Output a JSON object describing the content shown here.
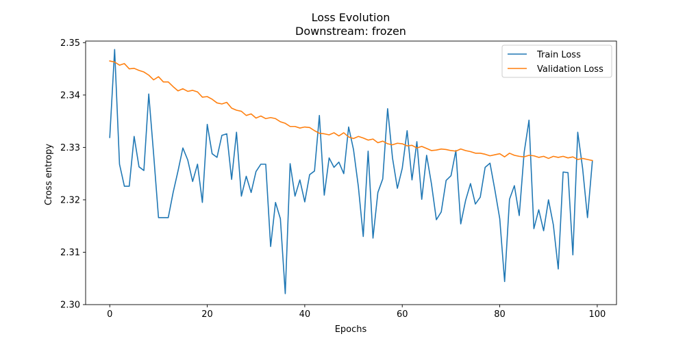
{
  "chart_data": {
    "type": "line",
    "title": "Loss Evolution",
    "subtitle": "Downstream: frozen",
    "xlabel": "Epochs",
    "ylabel": "Cross entropy",
    "xlim": [
      -4.95,
      103.95
    ],
    "ylim": [
      2.3,
      2.3503
    ],
    "xticks": [
      0,
      20,
      40,
      60,
      80,
      100
    ],
    "xtick_labels": [
      "0",
      "20",
      "40",
      "60",
      "80",
      "100"
    ],
    "yticks": [
      2.3,
      2.31,
      2.32,
      2.33,
      2.34,
      2.35
    ],
    "ytick_labels": [
      "2.30",
      "2.31",
      "2.32",
      "2.33",
      "2.34",
      "2.35"
    ],
    "grid": false,
    "legend_position": "top-right",
    "x": [
      0,
      1,
      2,
      3,
      4,
      5,
      6,
      7,
      8,
      9,
      10,
      11,
      12,
      13,
      14,
      15,
      16,
      17,
      18,
      19,
      20,
      21,
      22,
      23,
      24,
      25,
      26,
      27,
      28,
      29,
      30,
      31,
      32,
      33,
      34,
      35,
      36,
      37,
      38,
      39,
      40,
      41,
      42,
      43,
      44,
      45,
      46,
      47,
      48,
      49,
      50,
      51,
      52,
      53,
      54,
      55,
      56,
      57,
      58,
      59,
      60,
      61,
      62,
      63,
      64,
      65,
      66,
      67,
      68,
      69,
      70,
      71,
      72,
      73,
      74,
      75,
      76,
      77,
      78,
      79,
      80,
      81,
      82,
      83,
      84,
      85,
      86,
      87,
      88,
      89,
      90,
      91,
      92,
      93,
      94,
      95,
      96,
      97,
      98,
      99
    ],
    "series": [
      {
        "name": "Train Loss",
        "color": "#1f77b4",
        "values": [
          2.3319,
          2.3487,
          2.3268,
          2.3226,
          2.3226,
          2.3321,
          2.3263,
          2.3256,
          2.3402,
          2.3287,
          2.3166,
          2.3166,
          2.3166,
          2.3214,
          2.3255,
          2.3299,
          2.3276,
          2.3235,
          2.3268,
          2.3195,
          2.3344,
          2.3288,
          2.3281,
          2.3323,
          2.3326,
          2.3239,
          2.3329,
          2.3207,
          2.3245,
          2.3214,
          2.3254,
          2.3268,
          2.3268,
          2.3111,
          2.3195,
          2.3164,
          2.3021,
          2.3269,
          2.3207,
          2.3238,
          2.3196,
          2.3248,
          2.3255,
          2.3361,
          2.3209,
          2.328,
          2.3262,
          2.3272,
          2.325,
          2.3339,
          2.3296,
          2.3225,
          2.313,
          2.3293,
          2.3127,
          2.3214,
          2.324,
          2.3374,
          2.328,
          2.3222,
          2.326,
          2.3332,
          2.3238,
          2.3311,
          2.3201,
          2.3285,
          2.323,
          2.3162,
          2.3177,
          2.3237,
          2.3246,
          2.3294,
          2.3154,
          2.3199,
          2.3231,
          2.3192,
          2.3205,
          2.3262,
          2.327,
          2.3219,
          2.3164,
          2.3044,
          2.3201,
          2.3227,
          2.317,
          2.329,
          2.3352,
          2.3145,
          2.3181,
          2.3141,
          2.32,
          2.3152,
          2.3068,
          2.3253,
          2.3252,
          2.3095,
          2.3329,
          2.326,
          2.3166,
          2.3274
        ]
      },
      {
        "name": "Validation Loss",
        "color": "#ff7f0e",
        "values": [
          2.3465,
          2.3463,
          2.3457,
          2.346,
          2.345,
          2.3451,
          2.3447,
          2.3444,
          2.3438,
          2.3429,
          2.3435,
          2.3425,
          2.3425,
          2.3416,
          2.3408,
          2.3412,
          2.3407,
          2.3409,
          2.3406,
          2.3396,
          2.3397,
          2.3392,
          2.3385,
          2.3383,
          2.3386,
          2.3375,
          2.3371,
          2.3369,
          2.3361,
          2.3364,
          2.3356,
          2.336,
          2.3355,
          2.3357,
          2.3355,
          2.3349,
          2.3346,
          2.334,
          2.334,
          2.3337,
          2.3339,
          2.3338,
          2.3332,
          2.3327,
          2.3326,
          2.3324,
          2.3328,
          2.3322,
          2.3328,
          2.332,
          2.3317,
          2.3321,
          2.3318,
          2.3314,
          2.3316,
          2.3309,
          2.3312,
          2.3307,
          2.3305,
          2.3308,
          2.3307,
          2.3303,
          2.3304,
          2.3299,
          2.3302,
          2.3298,
          2.3294,
          2.3295,
          2.3297,
          2.3296,
          2.3294,
          2.3293,
          2.3297,
          2.3294,
          2.3292,
          2.3289,
          2.3289,
          2.3287,
          2.3284,
          2.3286,
          2.3288,
          2.3282,
          2.3289,
          2.3285,
          2.3283,
          2.3282,
          2.3285,
          2.3284,
          2.3281,
          2.3283,
          2.3279,
          2.3283,
          2.3281,
          2.3283,
          2.328,
          2.3282,
          2.3277,
          2.3279,
          2.3277,
          2.3275
        ]
      }
    ]
  }
}
